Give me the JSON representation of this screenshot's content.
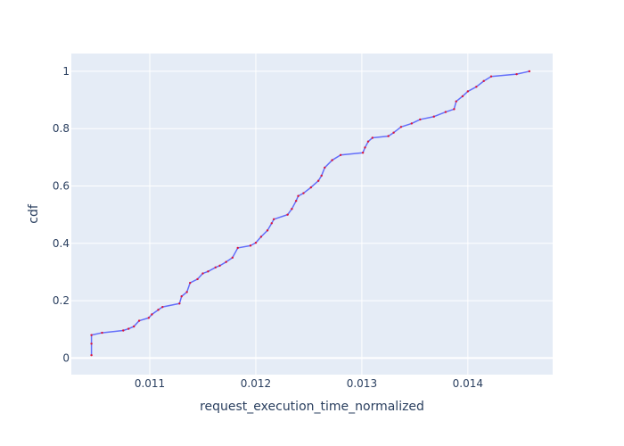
{
  "chart_data": {
    "type": "line",
    "title": "",
    "xlabel": "request_execution_time_normalized",
    "ylabel": "cdf",
    "xlim": [
      0.01026,
      0.0148
    ],
    "ylim": [
      -0.058,
      1.062
    ],
    "xticks": [
      0.011,
      0.012,
      0.013,
      0.014
    ],
    "xtick_labels": [
      "0.011",
      "0.012",
      "0.013",
      "0.014"
    ],
    "yticks": [
      0,
      0.2,
      0.4,
      0.6,
      0.8,
      1
    ],
    "ytick_labels": [
      "0",
      "0.2",
      "0.4",
      "0.6",
      "0.8",
      "1"
    ],
    "grid": true,
    "series": [
      {
        "line_color": "#636efa",
        "marker_color": "#dc143c",
        "x": [
          0.01045,
          0.01045,
          0.01045,
          0.01055,
          0.01075,
          0.0108,
          0.01085,
          0.0109,
          0.01099,
          0.01102,
          0.01108,
          0.01112,
          0.01128,
          0.0113,
          0.01135,
          0.01138,
          0.01145,
          0.0115,
          0.01155,
          0.01162,
          0.01166,
          0.01172,
          0.01178,
          0.01183,
          0.01195,
          0.012,
          0.01205,
          0.01211,
          0.01215,
          0.01217,
          0.0123,
          0.01234,
          0.01238,
          0.0124,
          0.01245,
          0.01252,
          0.01259,
          0.01262,
          0.01265,
          0.01272,
          0.0128,
          0.01301,
          0.01303,
          0.01306,
          0.0131,
          0.01325,
          0.0133,
          0.01337,
          0.01347,
          0.01355,
          0.01368,
          0.01379,
          0.01387,
          0.01389,
          0.01395,
          0.014,
          0.01408,
          0.01415,
          0.01422,
          0.01446,
          0.01458
        ],
        "y": [
          0.01,
          0.05,
          0.08,
          0.088,
          0.096,
          0.102,
          0.11,
          0.13,
          0.14,
          0.152,
          0.168,
          0.178,
          0.19,
          0.215,
          0.23,
          0.262,
          0.275,
          0.295,
          0.302,
          0.316,
          0.322,
          0.335,
          0.35,
          0.384,
          0.392,
          0.402,
          0.423,
          0.445,
          0.47,
          0.484,
          0.5,
          0.52,
          0.548,
          0.565,
          0.575,
          0.595,
          0.618,
          0.636,
          0.664,
          0.69,
          0.708,
          0.716,
          0.734,
          0.755,
          0.768,
          0.774,
          0.786,
          0.806,
          0.818,
          0.832,
          0.842,
          0.858,
          0.868,
          0.895,
          0.913,
          0.93,
          0.946,
          0.966,
          0.982,
          0.99,
          1.0
        ]
      }
    ]
  }
}
